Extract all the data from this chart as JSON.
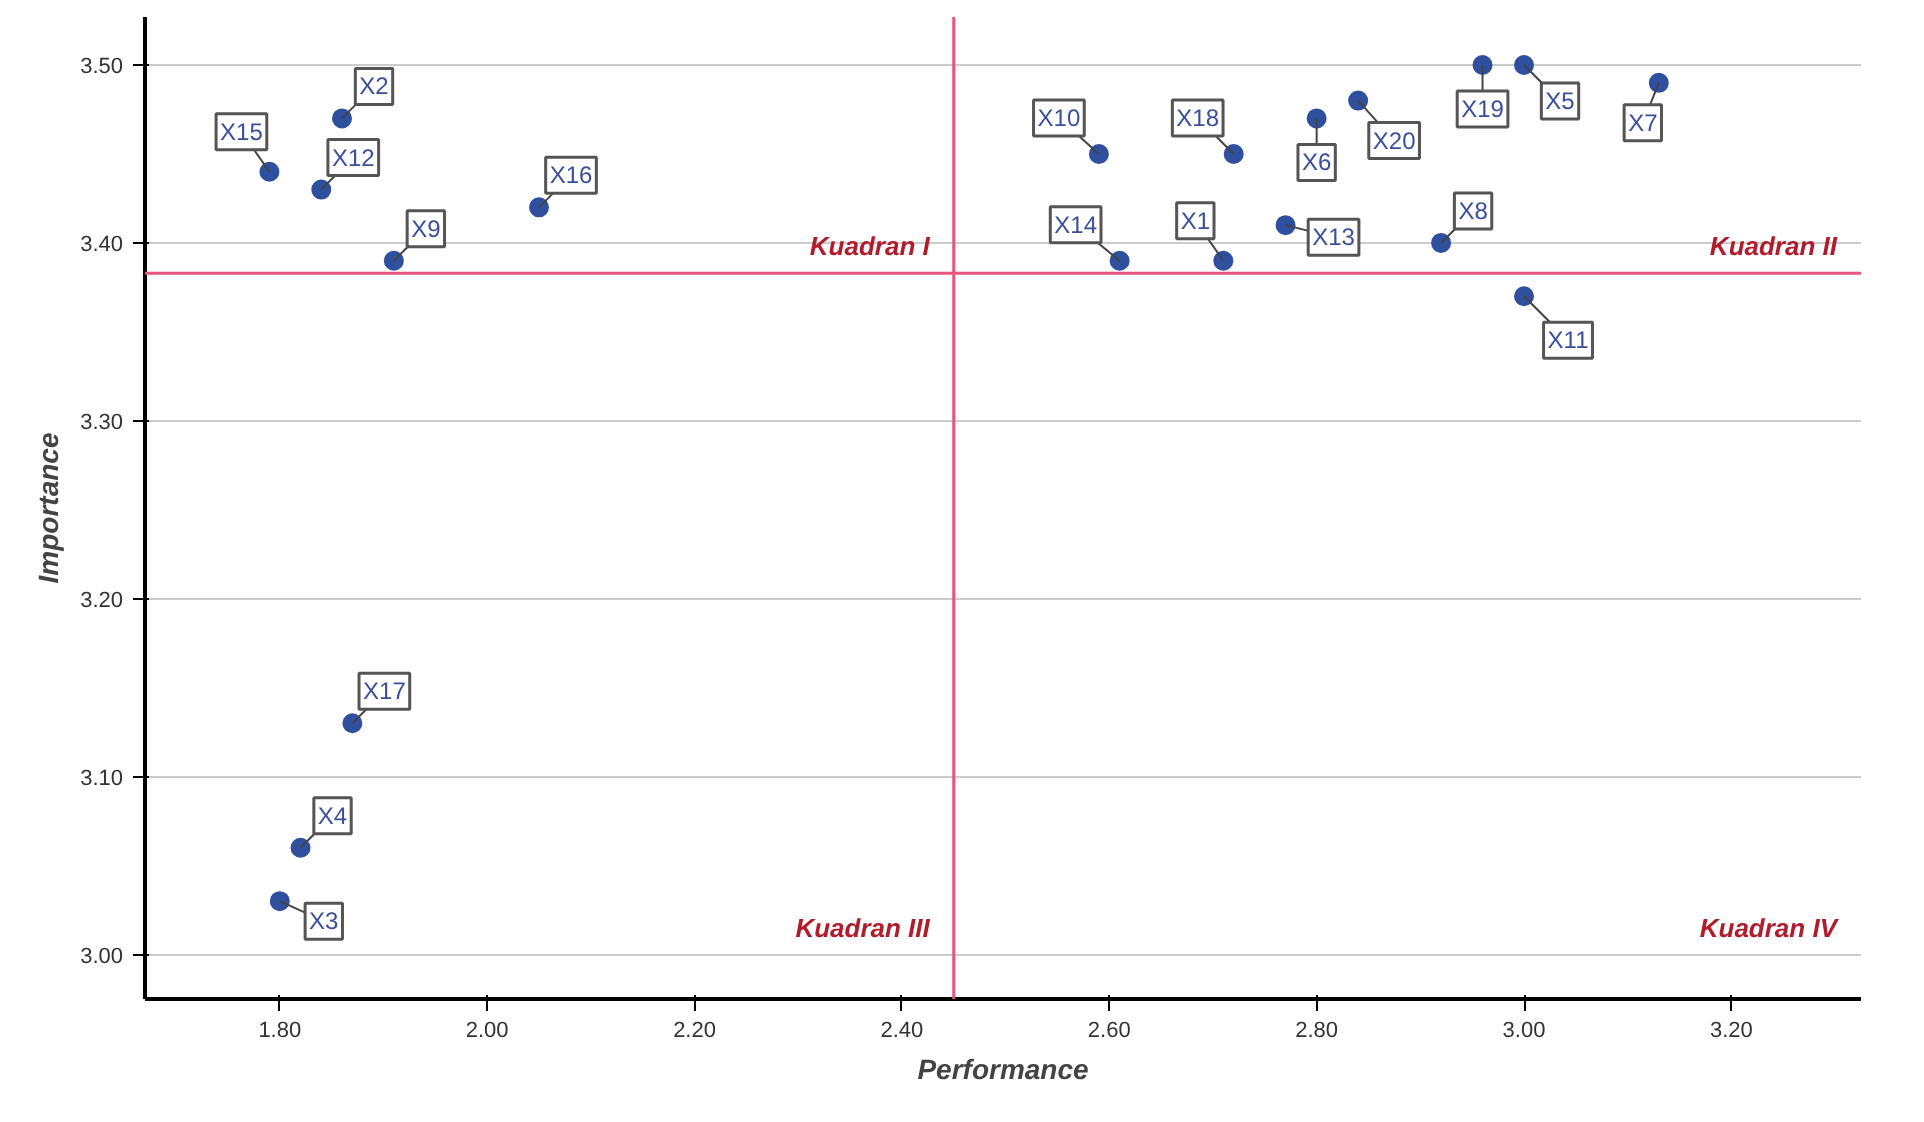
{
  "chart_data": {
    "type": "scatter",
    "xlabel": "Performance",
    "ylabel": "Importance",
    "x": [
      2.71,
      1.86,
      1.8,
      1.82,
      3.0,
      2.8,
      3.13,
      2.92,
      1.91,
      2.59,
      3.0,
      1.84,
      2.77,
      2.61,
      1.79,
      2.05,
      1.87,
      2.72,
      2.96,
      2.84
    ],
    "series": [
      {
        "color": "#2f4f9f",
        "values": [
          3.39,
          3.47,
          3.03,
          3.06,
          3.5,
          3.47,
          3.49,
          3.4,
          3.39,
          3.45,
          3.37,
          3.43,
          3.41,
          3.39,
          3.44,
          3.42,
          3.13,
          3.45,
          3.5,
          3.48
        ]
      }
    ],
    "xlim": [
      1.67,
      3.325
    ],
    "ylim": [
      2.975,
      3.527
    ],
    "xticks": [
      {
        "value": 1.8,
        "label": "1.80"
      },
      {
        "value": 2.0,
        "label": "2.00"
      },
      {
        "value": 2.2,
        "label": "2.20"
      },
      {
        "value": 2.4,
        "label": "2.40"
      },
      {
        "value": 2.6,
        "label": "2.60"
      },
      {
        "value": 2.8,
        "label": "2.80"
      },
      {
        "value": 3.0,
        "label": "3.00"
      },
      {
        "value": 3.2,
        "label": "3.20"
      }
    ],
    "yticks": [
      {
        "value": 3.0,
        "label": "3.00"
      },
      {
        "value": 3.1,
        "label": "3.10"
      },
      {
        "value": 3.2,
        "label": "3.20"
      },
      {
        "value": 3.3,
        "label": "3.30"
      },
      {
        "value": 3.4,
        "label": "3.40"
      },
      {
        "value": 3.5,
        "label": "3.50"
      }
    ],
    "grid": "y",
    "marker": "circle",
    "ref_lines": [
      {
        "axis": "x",
        "value": 2.45,
        "color": "#e8557f"
      },
      {
        "axis": "y",
        "value": 3.383,
        "color": "#e8557f"
      }
    ],
    "annotations": [
      {
        "text": "X1",
        "x": 2.71,
        "y": 3.39
      },
      {
        "text": "X2",
        "x": 1.86,
        "y": 3.47
      },
      {
        "text": "X3",
        "x": 1.8,
        "y": 3.03
      },
      {
        "text": "X4",
        "x": 1.82,
        "y": 3.06
      },
      {
        "text": "X5",
        "x": 3.0,
        "y": 3.5
      },
      {
        "text": "X6",
        "x": 2.8,
        "y": 3.47
      },
      {
        "text": "X7",
        "x": 3.13,
        "y": 3.49
      },
      {
        "text": "X8",
        "x": 2.92,
        "y": 3.4
      },
      {
        "text": "X9",
        "x": 1.91,
        "y": 3.39
      },
      {
        "text": "X10",
        "x": 2.59,
        "y": 3.45
      },
      {
        "text": "X11",
        "x": 3.0,
        "y": 3.37
      },
      {
        "text": "X12",
        "x": 1.84,
        "y": 3.43
      },
      {
        "text": "X13",
        "x": 2.77,
        "y": 3.41
      },
      {
        "text": "X14",
        "x": 2.61,
        "y": 3.39
      },
      {
        "text": "X15",
        "x": 1.79,
        "y": 3.44
      },
      {
        "text": "X16",
        "x": 2.05,
        "y": 3.42
      },
      {
        "text": "X17",
        "x": 1.87,
        "y": 3.13
      },
      {
        "text": "X18",
        "x": 2.72,
        "y": 3.45
      },
      {
        "text": "X19",
        "x": 2.96,
        "y": 3.5
      },
      {
        "text": "X20",
        "x": 2.84,
        "y": 3.48
      },
      "Kuadran I",
      "Kuadran II",
      "Kuadran III",
      "Kuadran IV"
    ]
  }
}
